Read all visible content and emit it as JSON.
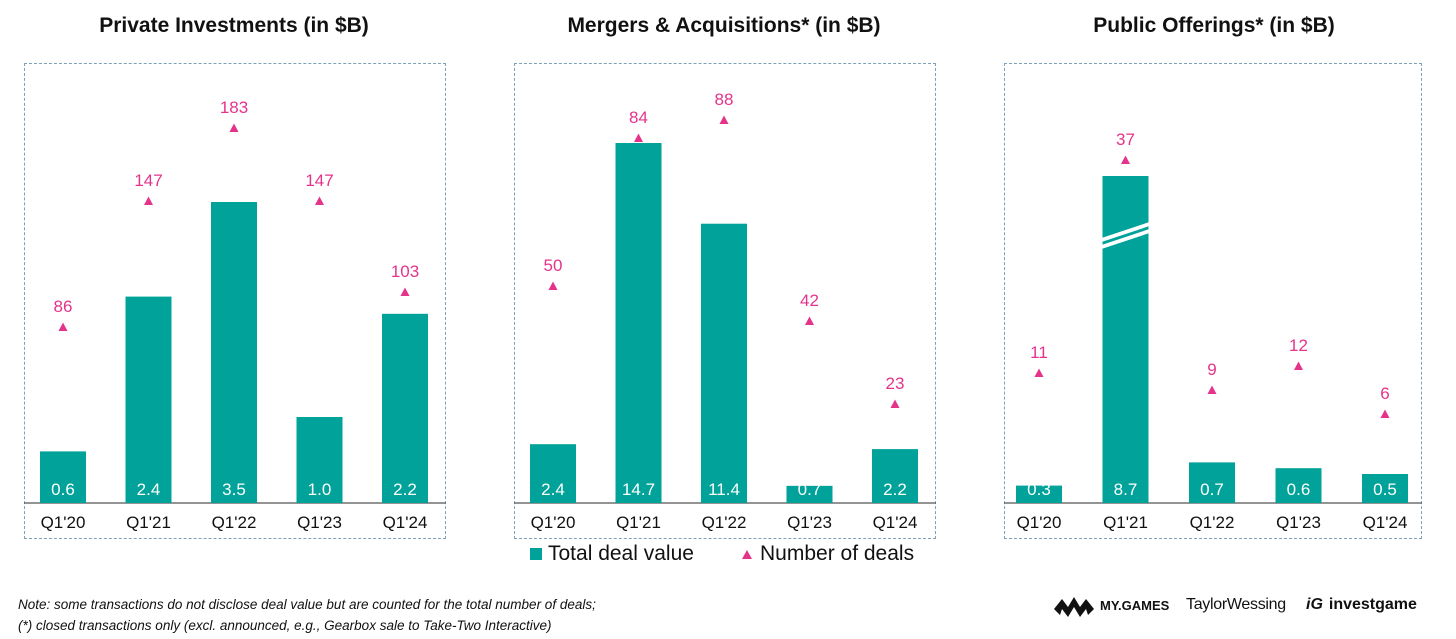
{
  "colors": {
    "bar": "#00a299",
    "marker": "#e5338b",
    "axis": "#555555",
    "frame": "#7da2b8"
  },
  "chart_data": [
    {
      "type": "bar",
      "title": "Private Investments (in $B)",
      "categories": [
        "Q1'20",
        "Q1'21",
        "Q1'22",
        "Q1'23",
        "Q1'24"
      ],
      "series": [
        {
          "name": "Total deal value",
          "values": [
            0.6,
            2.4,
            3.5,
            1.0,
            2.2
          ],
          "labels": [
            "0.6",
            "2.4",
            "3.5",
            "1.0",
            "2.2"
          ]
        },
        {
          "name": "Number of deals",
          "values": [
            86,
            147,
            183,
            147,
            103
          ]
        }
      ],
      "axis_break": false
    },
    {
      "type": "bar",
      "title": "Mergers & Acquisitions* (in $B)",
      "categories": [
        "Q1'20",
        "Q1'21",
        "Q1'22",
        "Q1'23",
        "Q1'24"
      ],
      "series": [
        {
          "name": "Total deal value",
          "values": [
            2.4,
            14.7,
            11.4,
            0.7,
            2.2
          ],
          "labels": [
            "2.4",
            "14.7",
            "11.4",
            "0.7",
            "2.2"
          ]
        },
        {
          "name": "Number of deals",
          "values": [
            50,
            84,
            88,
            42,
            23
          ]
        }
      ],
      "axis_break": false
    },
    {
      "type": "bar",
      "title": "Public Offerings* (in $B)",
      "categories": [
        "Q1'20",
        "Q1'21",
        "Q1'22",
        "Q1'23",
        "Q1'24"
      ],
      "series": [
        {
          "name": "Total deal value",
          "values": [
            0.3,
            8.7,
            0.7,
            0.6,
            0.5
          ],
          "labels": [
            "0.3",
            "8.7",
            "0.7",
            "0.6",
            "0.5"
          ]
        },
        {
          "name": "Number of deals",
          "values": [
            11,
            37,
            9,
            12,
            6
          ]
        }
      ],
      "axis_break": true,
      "break_category": "Q1'21"
    }
  ],
  "legend": {
    "bar_label": "Total deal value",
    "marker_label": "Number of deals"
  },
  "note": {
    "line1": "Note: some transactions do not disclose deal value but are counted for the total number of deals;",
    "line2": "(*) closed transactions only (excl. announced, e.g., Gearbox sale to Take-Two Interactive)"
  },
  "logos": {
    "mygames": "MY.GAMES",
    "taylorwessing": "TaylorWessing",
    "investgame": "investgame",
    "investgame_mark": "iG"
  }
}
